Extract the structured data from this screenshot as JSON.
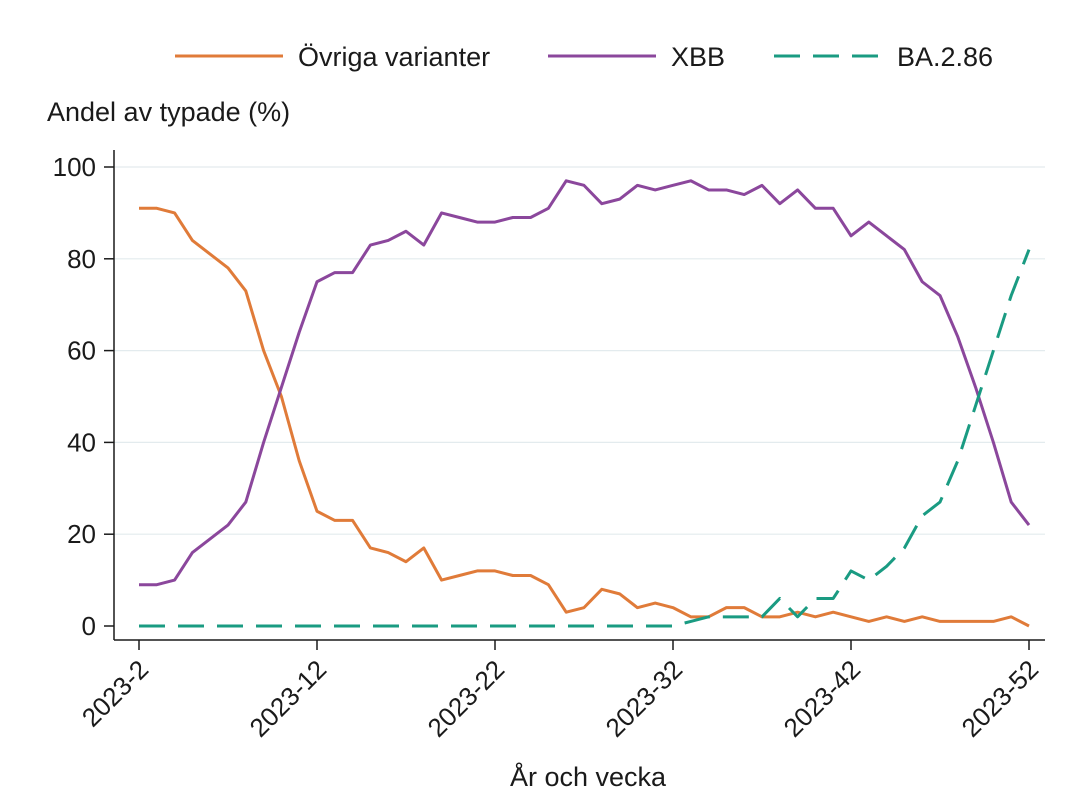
{
  "chart_data": {
    "type": "line",
    "title": "",
    "ylabel": "Andel av typade (%)",
    "xlabel": "År och vecka",
    "ylim": [
      0,
      100
    ],
    "yticks": [
      0,
      20,
      40,
      60,
      80,
      100
    ],
    "x_weeks": [
      2,
      3,
      4,
      5,
      6,
      7,
      8,
      9,
      10,
      11,
      12,
      13,
      14,
      15,
      16,
      17,
      18,
      19,
      20,
      21,
      22,
      23,
      24,
      25,
      26,
      27,
      28,
      29,
      30,
      31,
      32,
      33,
      34,
      35,
      36,
      37,
      38,
      39,
      40,
      41,
      42,
      43,
      44,
      45,
      46,
      47,
      48,
      49,
      50,
      51,
      52
    ],
    "xticks": [
      {
        "week": 2,
        "label": "2023-2"
      },
      {
        "week": 12,
        "label": "2023-12"
      },
      {
        "week": 22,
        "label": "2023-22"
      },
      {
        "week": 32,
        "label": "2023-32"
      },
      {
        "week": 42,
        "label": "2023-42"
      },
      {
        "week": 52,
        "label": "2023-52"
      }
    ],
    "grid": true,
    "legend_position": "top",
    "series": [
      {
        "name": "Övriga varianter",
        "color": "#e07b39",
        "dash": "solid",
        "values": [
          91,
          91,
          90,
          84,
          81,
          78,
          73,
          60,
          50,
          36,
          25,
          23,
          23,
          17,
          16,
          14,
          17,
          10,
          11,
          12,
          12,
          11,
          11,
          9,
          3,
          4,
          8,
          7,
          4,
          5,
          4,
          2,
          2,
          4,
          4,
          2,
          2,
          3,
          2,
          3,
          2,
          1,
          2,
          1,
          2,
          1,
          1,
          1,
          1,
          2,
          0
        ]
      },
      {
        "name": "XBB",
        "color": "#8b479c",
        "dash": "solid",
        "values": [
          9,
          9,
          10,
          16,
          19,
          22,
          27,
          40,
          52,
          64,
          75,
          77,
          77,
          83,
          84,
          86,
          83,
          90,
          89,
          88,
          88,
          89,
          89,
          91,
          97,
          96,
          92,
          93,
          96,
          95,
          96,
          97,
          95,
          95,
          94,
          96,
          92,
          95,
          91,
          91,
          85,
          88,
          85,
          82,
          75,
          72,
          63,
          52,
          40,
          27,
          22
        ]
      },
      {
        "name": "BA.2.86",
        "color": "#1a9b82",
        "dash": "dashed",
        "values": [
          0,
          0,
          0,
          0,
          0,
          0,
          0,
          0,
          0,
          0,
          0,
          0,
          0,
          0,
          0,
          0,
          0,
          0,
          0,
          0,
          0,
          0,
          0,
          0,
          0,
          0,
          0,
          0,
          0,
          0,
          0,
          1,
          2,
          2,
          2,
          2,
          6,
          2,
          6,
          6,
          12,
          10,
          13,
          17,
          24,
          27,
          36,
          48,
          60,
          72,
          82
        ]
      }
    ]
  }
}
